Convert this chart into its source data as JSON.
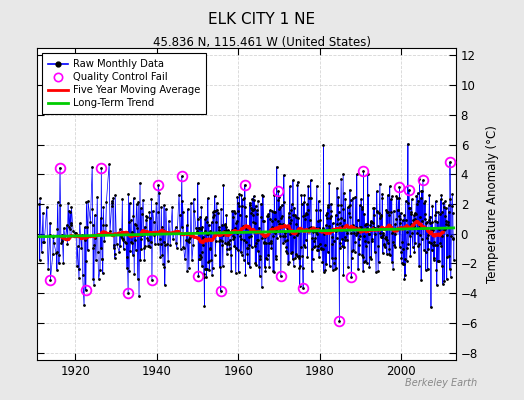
{
  "title": "ELK CITY 1 NE",
  "subtitle": "45.836 N, 115.461 W (United States)",
  "ylabel": "Temperature Anomaly (°C)",
  "watermark": "Berkeley Earth",
  "ylim": [
    -8.5,
    12.5
  ],
  "yticks": [
    -8,
    -6,
    -4,
    -2,
    0,
    2,
    4,
    6,
    8,
    10,
    12
  ],
  "xlim": [
    1910.5,
    2013.5
  ],
  "xticks": [
    1920,
    1940,
    1960,
    1980,
    2000
  ],
  "bg_color": "#e8e8e8",
  "plot_bg_color": "#ffffff",
  "seed": 17,
  "start_year": 1911.0,
  "end_year": 2012.0,
  "sparse_end": 1950,
  "sparse_monthly": 6,
  "dense_monthly": 12
}
